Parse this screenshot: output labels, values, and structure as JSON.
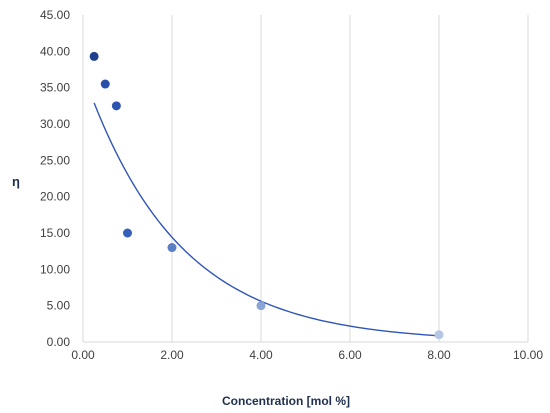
{
  "chart_data": {
    "type": "scatter",
    "xlabel": "Concentration [mol %]",
    "ylabel": "η",
    "xlim": [
      0,
      10
    ],
    "ylim": [
      0,
      45
    ],
    "x_ticks": [
      0,
      2,
      4,
      6,
      8,
      10
    ],
    "y_ticks": [
      0,
      5,
      10,
      15,
      20,
      25,
      30,
      35,
      40,
      45
    ],
    "x_tick_labels": [
      "0.00",
      "2.00",
      "4.00",
      "6.00",
      "8.00",
      "10.00"
    ],
    "y_tick_labels": [
      "0.00",
      "5.00",
      "10.00",
      "15.00",
      "20.00",
      "25.00",
      "30.00",
      "35.00",
      "40.00",
      "45.00"
    ],
    "grid": "vertical",
    "series": [
      {
        "points": [
          {
            "x": 0.25,
            "y": 39.3
          },
          {
            "x": 0.5,
            "y": 35.5
          },
          {
            "x": 0.75,
            "y": 32.5
          },
          {
            "x": 1.0,
            "y": 15.0
          },
          {
            "x": 2.0,
            "y": 13.0
          },
          {
            "x": 4.0,
            "y": 5.0
          },
          {
            "x": 8.0,
            "y": 1.0
          }
        ],
        "point_colors": [
          "#1f3f8f",
          "#2a4fa8",
          "#2d55b0",
          "#3560b8",
          "#5a7fc4",
          "#8aa4d4",
          "#b5c6e4"
        ]
      }
    ],
    "trendline": {
      "type": "exponential",
      "a": 37.02,
      "b": -0.4715,
      "x_range": [
        0.25,
        8.0
      ],
      "color": "#2f55b8"
    }
  }
}
